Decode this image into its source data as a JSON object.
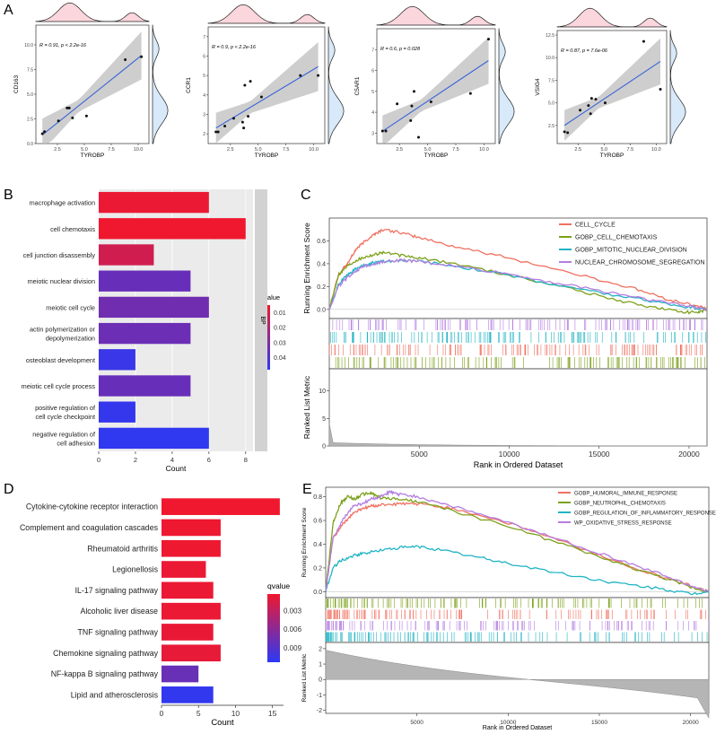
{
  "panels": {
    "a": "A",
    "b": "B",
    "c": "C",
    "d": "D",
    "e": "E"
  },
  "colors": {
    "bar_high": "#f0182f",
    "bar_low": "#2b39f5",
    "grid": "#ebebeb",
    "strip": "#d2d2d2",
    "cell_cycle": "#f07060",
    "chemotaxis": "#7ca11a",
    "mitotic": "#21b4c4",
    "nuclear": "#b47de0",
    "fit": "#3a64d8",
    "ci": "#bdbdbd",
    "dens_x": "#fbd6dc",
    "dens_y": "#d8e9f9"
  },
  "chart_data": [
    {
      "type": "scatter",
      "id": "A1",
      "xlabel": "TYROBP",
      "ylabel": "CD163",
      "annotation": "R = 0.91, p < 2.2e-16",
      "xlim": [
        0.5,
        11
      ],
      "ylim": [
        0,
        12
      ],
      "xticks": [
        "2.5",
        "5.0",
        "7.5",
        "10.0"
      ],
      "yticks": [
        "0.0",
        "2.5",
        "5.0",
        "7.5",
        "10.0"
      ],
      "x": [
        1.1,
        1.3,
        2.6,
        3.4,
        3.6,
        3.9,
        5.2,
        8.8,
        10.3
      ],
      "y": [
        1.0,
        1.2,
        2.3,
        3.6,
        3.6,
        2.6,
        2.8,
        8.5,
        8.8
      ]
    },
    {
      "type": "scatter",
      "id": "A2",
      "xlabel": "TYROBP",
      "ylabel": "CCR1",
      "annotation": "R = 0.9, p < 2.2e-16",
      "xlim": [
        0.5,
        11
      ],
      "ylim": [
        1.5,
        7.5
      ],
      "xticks": [
        "2.5",
        "5.0",
        "7.5",
        "10.0"
      ],
      "yticks": [
        "2",
        "3",
        "4",
        "5",
        "6",
        "7"
      ],
      "x": [
        1.2,
        1.4,
        2.0,
        2.8,
        3.6,
        3.7,
        3.8,
        4.1,
        4.3,
        5.3,
        8.8,
        10.4
      ],
      "y": [
        2.1,
        2.1,
        2.4,
        2.8,
        2.6,
        2.3,
        4.5,
        2.9,
        4.7,
        3.9,
        5.0,
        5.0
      ]
    },
    {
      "type": "scatter",
      "id": "A3",
      "xlabel": "TYROBP",
      "ylabel": "C5AR1",
      "annotation": "R = 0.6, p = 0.028",
      "xlim": [
        0.5,
        11
      ],
      "ylim": [
        2.5,
        8
      ],
      "xticks": [
        "2.5",
        "5.0",
        "7.5",
        "10.0"
      ],
      "yticks": [
        "3",
        "4",
        "5",
        "6",
        "7"
      ],
      "x": [
        1.0,
        1.3,
        2.3,
        3.5,
        3.6,
        3.8,
        4.2,
        5.3,
        8.8,
        10.4
      ],
      "y": [
        3.1,
        3.1,
        4.4,
        3.6,
        4.3,
        5.0,
        2.8,
        4.5,
        4.9,
        7.5
      ]
    },
    {
      "type": "scatter",
      "id": "A4",
      "xlabel": "TYROBP",
      "ylabel": "VSIG4",
      "annotation": "R = 0.87, p = 7.6e-06",
      "xlim": [
        0.5,
        11
      ],
      "ylim": [
        0.5,
        13
      ],
      "xticks": [
        "2.5",
        "5.0",
        "7.5",
        "10.0"
      ],
      "yticks": [
        "2.5",
        "5.0",
        "7.5",
        "10.0",
        "12.5"
      ],
      "x": [
        1.2,
        1.5,
        2.7,
        3.5,
        3.7,
        3.8,
        4.2,
        5.1,
        8.8,
        10.4
      ],
      "y": [
        1.8,
        1.7,
        4.2,
        4.7,
        3.8,
        5.5,
        5.4,
        5.0,
        11.8,
        6.5
      ]
    },
    {
      "type": "bar",
      "id": "B",
      "orientation": "horizontal",
      "categories": [
        "macrophage activation",
        "cell chemotaxis",
        "cell junction disassembly",
        "meiotic nuclear division",
        "meiotic cell cycle",
        "actin polymerization or depolymerization",
        "osteoblast development",
        "meiotic cell cycle process",
        "positive regulation of cell cycle checkpoint",
        "negative regulation of cell adhesion"
      ],
      "values": [
        6,
        8,
        3,
        5,
        6,
        5,
        2,
        5,
        2,
        6
      ],
      "qvalues": [
        0.006,
        0.005,
        0.012,
        0.035,
        0.033,
        0.034,
        0.045,
        0.035,
        0.046,
        0.047
      ],
      "xlabel": "Count",
      "xlim": [
        0,
        8.4
      ],
      "xticks": [
        "0",
        "2",
        "4",
        "6",
        "8"
      ],
      "legend_title": "qvalue",
      "legend_ticks": [
        "0.01",
        "0.02",
        "0.03",
        "0.04"
      ],
      "legend_range": [
        0.005,
        0.048
      ],
      "facet_label": "BP"
    },
    {
      "type": "line",
      "id": "C",
      "ylabel": "Running Enrichment Score",
      "ylim": [
        -0.08,
        0.8
      ],
      "yticks": [
        "0.0",
        "0.2",
        "0.4",
        "0.6"
      ],
      "series": [
        {
          "name": "CELL_CYCLE",
          "color_key": "cell_cycle",
          "x": [
            0,
            500,
            1000,
            1500,
            2000,
            2500,
            3000,
            4000,
            5000,
            7000,
            10000,
            14000,
            17000,
            19000,
            20500,
            21000
          ],
          "y": [
            0,
            0.3,
            0.4,
            0.53,
            0.6,
            0.66,
            0.7,
            0.67,
            0.63,
            0.55,
            0.45,
            0.3,
            0.18,
            0.08,
            0.03,
            0
          ]
        },
        {
          "name": "GOBP_CELL_CHEMOTAXIS",
          "color_key": "chemotaxis",
          "x": [
            0,
            500,
            1000,
            1500,
            2000,
            2500,
            3000,
            4000,
            5000,
            7000,
            10000,
            13000,
            16000,
            18000,
            19500,
            20500,
            21000
          ],
          "y": [
            0,
            0.3,
            0.38,
            0.43,
            0.46,
            0.48,
            0.5,
            0.47,
            0.45,
            0.4,
            0.3,
            0.2,
            0.08,
            0.02,
            -0.02,
            -0.03,
            0
          ]
        },
        {
          "name": "GOBP_MITOTIC_NUCLEAR_DIVISION",
          "color_key": "mitotic",
          "x": [
            0,
            500,
            1000,
            1500,
            2000,
            2500,
            3000,
            4000,
            5000,
            7000,
            10000,
            13000,
            16000,
            18000,
            20000,
            21000
          ],
          "y": [
            0,
            0.22,
            0.3,
            0.36,
            0.39,
            0.41,
            0.42,
            0.43,
            0.42,
            0.38,
            0.3,
            0.2,
            0.12,
            0.07,
            0.02,
            0
          ]
        },
        {
          "name": "NUCLEAR_CHROMOSOME_SEGREGATION",
          "color_key": "nuclear",
          "x": [
            0,
            500,
            1000,
            1500,
            2000,
            2500,
            3000,
            4000,
            5000,
            7000,
            10000,
            13000,
            16000,
            18000,
            20000,
            21000
          ],
          "y": [
            0,
            0.2,
            0.28,
            0.34,
            0.38,
            0.4,
            0.42,
            0.43,
            0.42,
            0.38,
            0.31,
            0.22,
            0.14,
            0.08,
            0.03,
            0
          ]
        }
      ],
      "rank_xlabel": "Rank in Ordered Dataset",
      "rank_ylabel": "Ranked List Metric",
      "rank_xticks": [
        "5000",
        "10000",
        "15000",
        "20000"
      ],
      "rank_yticks": [
        "0",
        "5",
        "10"
      ],
      "rank_ylim": [
        0,
        14
      ],
      "rank_xmax": 21000
    },
    {
      "type": "bar",
      "id": "D",
      "orientation": "horizontal",
      "categories": [
        "Cytokine-cytokine receptor interaction",
        "Complement and coagulation cascades",
        "Rheumatoid arthritis",
        "Legionellosis",
        "IL-17 signaling pathway",
        "Alcoholic liver disease",
        "TNF signaling pathway",
        "Chemokine signaling pathway",
        "NF-kappa B signaling pathway",
        "Lipid and atherosclerosis"
      ],
      "values": [
        16,
        8,
        8,
        6,
        7,
        8,
        7,
        8,
        5,
        7
      ],
      "qvalues": [
        0.0003,
        0.0004,
        0.0004,
        0.0006,
        0.0006,
        0.0006,
        0.0007,
        0.0008,
        0.0078,
        0.0108
      ],
      "xlabel": "Count",
      "xlim": [
        0,
        16.5
      ],
      "xticks": [
        "0",
        "5",
        "10",
        "15"
      ],
      "legend_title": "qvalue",
      "legend_ticks": [
        "0.003",
        "0.006",
        "0.009"
      ],
      "legend_range": [
        0.0003,
        0.0112
      ]
    },
    {
      "type": "line",
      "id": "E",
      "ylabel": "Running Enrichment Score",
      "ylim": [
        -0.05,
        0.88
      ],
      "yticks": [
        "0.0",
        "0.2",
        "0.4",
        "0.6",
        "0.8"
      ],
      "series": [
        {
          "name": "GOBP_HUMORAL_IMMUNE_RESPONSE",
          "color_key": "cell_cycle",
          "x": [
            0,
            400,
            1000,
            1500,
            2000,
            2500,
            3000,
            4000,
            5000,
            7000,
            10000,
            13000,
            16000,
            18500,
            20000,
            21000
          ],
          "y": [
            0,
            0.45,
            0.58,
            0.66,
            0.7,
            0.72,
            0.73,
            0.74,
            0.74,
            0.7,
            0.58,
            0.42,
            0.25,
            0.12,
            0.05,
            0
          ]
        },
        {
          "name": "GOBP_NEUTROPHIL_CHEMOTAXIS",
          "color_key": "chemotaxis",
          "x": [
            0,
            400,
            800,
            1200,
            1600,
            2000,
            2500,
            3000,
            4000,
            5000,
            7000,
            10000,
            13000,
            16000,
            18500,
            20000,
            21000
          ],
          "y": [
            0,
            0.58,
            0.74,
            0.8,
            0.78,
            0.82,
            0.83,
            0.79,
            0.78,
            0.76,
            0.68,
            0.55,
            0.4,
            0.24,
            0.12,
            0.04,
            0
          ]
        },
        {
          "name": "GOBP_REGULATION_OF_INFLAMMATORY_RESPONSE",
          "color_key": "mitotic",
          "x": [
            0,
            400,
            800,
            1500,
            2000,
            3000,
            4000,
            5000,
            6000,
            8000,
            10000,
            13000,
            16000,
            18500,
            20000,
            21000
          ],
          "y": [
            0,
            0.2,
            0.26,
            0.3,
            0.32,
            0.35,
            0.37,
            0.38,
            0.36,
            0.3,
            0.24,
            0.15,
            0.07,
            0.02,
            -0.02,
            0
          ]
        },
        {
          "name": "WP_OXIDATIVE_STRESS_RESPONSE",
          "color_key": "nuclear",
          "x": [
            0,
            400,
            1000,
            1500,
            2000,
            2500,
            3000,
            3500,
            4000,
            5000,
            7000,
            10000,
            13000,
            16000,
            18500,
            20000,
            21000
          ],
          "y": [
            0,
            0.45,
            0.62,
            0.72,
            0.74,
            0.78,
            0.8,
            0.84,
            0.82,
            0.8,
            0.72,
            0.58,
            0.43,
            0.27,
            0.14,
            0.05,
            0
          ]
        }
      ],
      "rank_xlabel": "Rank in Ordered Dataset",
      "rank_ylabel": "Ranked List Metric",
      "rank_xticks": [
        "5000",
        "10000",
        "15000",
        "20000"
      ],
      "rank_yticks": [
        "-2",
        "-1",
        "0",
        "1",
        "2"
      ],
      "rank_ylim": [
        -2.2,
        2.4
      ],
      "rank_xmax": 21000
    }
  ]
}
